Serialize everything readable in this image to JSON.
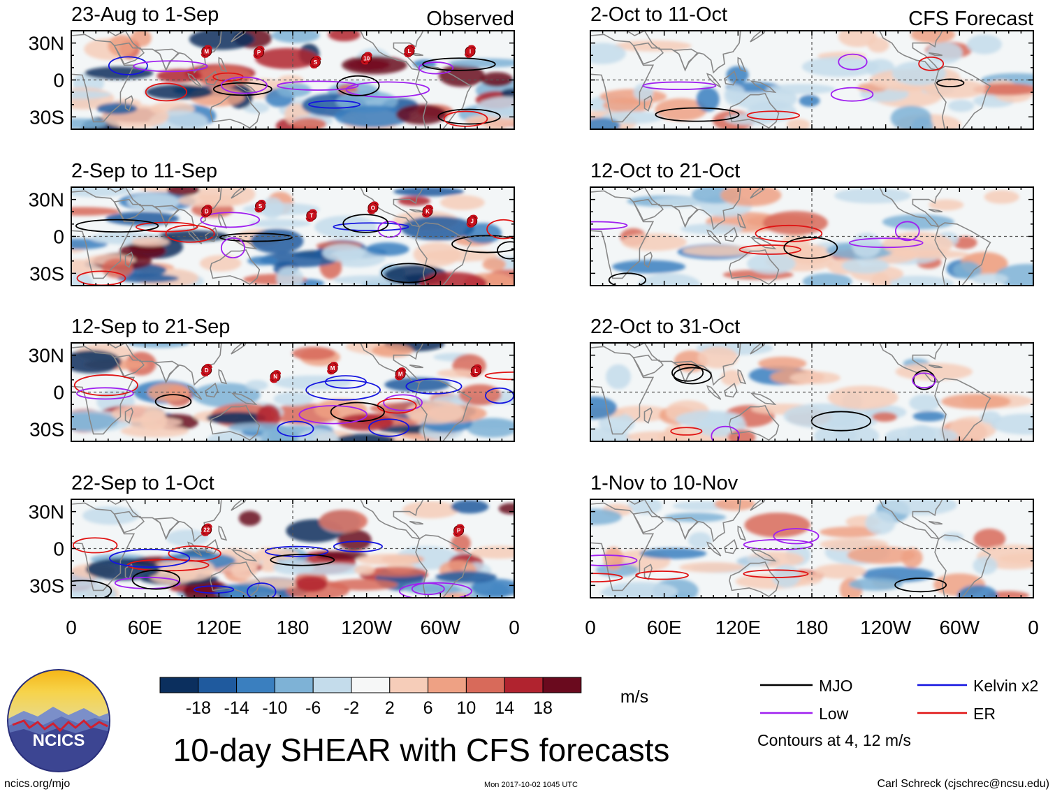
{
  "chart_data": {
    "type": "heatmap",
    "title": "10-day SHEAR with CFS forecasts",
    "columns": [
      {
        "label": "Observed",
        "panels": [
          {
            "title": "23-Aug to 1-Sep",
            "storms": [
              "M",
              "P",
              "S",
              "10",
              "L",
              "I"
            ]
          },
          {
            "title": "2-Sep to 11-Sep",
            "storms": [
              "D",
              "S",
              "T",
              "O",
              "K",
              "J"
            ]
          },
          {
            "title": "12-Sep to 21-Sep",
            "storms": [
              "D",
              "N",
              "M",
              "M",
              "L"
            ]
          },
          {
            "title": "22-Sep to 1-Oct",
            "storms": [
              "22",
              "P"
            ]
          }
        ]
      },
      {
        "label": "CFS Forecast",
        "panels": [
          {
            "title": "2-Oct to 11-Oct",
            "storms": []
          },
          {
            "title": "12-Oct to 21-Oct",
            "storms": []
          },
          {
            "title": "22-Oct to 31-Oct",
            "storms": []
          },
          {
            "title": "1-Nov to 10-Nov",
            "storms": []
          }
        ]
      }
    ],
    "lat_labels": [
      "30N",
      "0",
      "30S"
    ],
    "lat_values": [
      30,
      0,
      -30
    ],
    "lat_range": [
      -40,
      40
    ],
    "lon_labels": [
      "0",
      "60E",
      "120E",
      "180",
      "120W",
      "60W",
      "0"
    ],
    "lon_values": [
      0,
      60,
      120,
      180,
      240,
      300,
      360
    ],
    "lon_range": [
      0,
      360
    ],
    "colorbar": {
      "ticks": [
        "-18",
        "-14",
        "-10",
        "-6",
        "-2",
        "2",
        "6",
        "10",
        "14",
        "18"
      ],
      "colors": [
        "#0b2f5e",
        "#1f5a9e",
        "#3a7fbf",
        "#7eb2d6",
        "#c4dceb",
        "#f6f7f7",
        "#f6cdb9",
        "#eea184",
        "#d86a5a",
        "#b1232f",
        "#6a0a1e"
      ],
      "units": "m/s"
    },
    "legend": [
      {
        "label": "MJO",
        "color": "#000000"
      },
      {
        "label": "Kelvin x2",
        "color": "#1414e0"
      },
      {
        "label": "Low",
        "color": "#a020f0"
      },
      {
        "label": "ER",
        "color": "#e01414"
      }
    ],
    "contour_note": "Contours at 4, 12 m/s"
  },
  "footer": {
    "logo_text": "NCICS",
    "url": "ncics.org/mjo",
    "timestamp": "Mon 2017-10-02 1045 UTC",
    "author": "Carl Schreck (cjschrec@ncsu.edu)"
  },
  "colors": {
    "land": "#888888",
    "frame": "#000000",
    "grid": "#555555"
  }
}
